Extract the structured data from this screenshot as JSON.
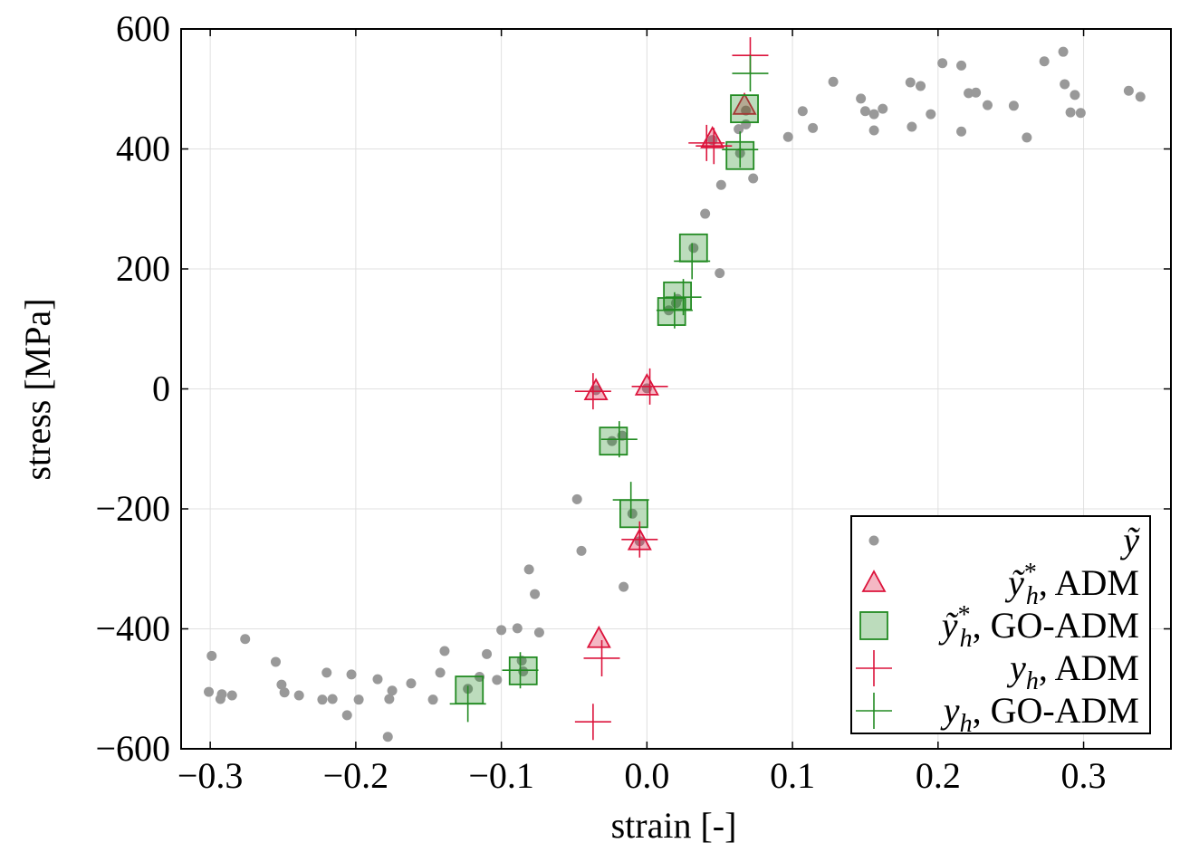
{
  "chart_data": {
    "type": "scatter",
    "xlabel": "strain [-]",
    "ylabel": "stress [MPa]",
    "xlim": [
      -0.32,
      0.36
    ],
    "ylim": [
      -600,
      600
    ],
    "xticks": [
      -0.3,
      -0.2,
      -0.1,
      0.0,
      0.1,
      0.2,
      0.3
    ],
    "xtick_labels": [
      "−0.3",
      "−0.2",
      "−0.1",
      "0.0",
      "0.1",
      "0.2",
      "0.3"
    ],
    "yticks": [
      -600,
      -400,
      -200,
      0,
      200,
      400,
      600
    ],
    "ytick_labels": [
      "−600",
      "−400",
      "−200",
      "0",
      "200",
      "400",
      "600"
    ],
    "grid": true,
    "legend_position": "bottom-right",
    "colors": {
      "data": "#999999",
      "adm": "#dc143c",
      "go_adm": "#228b22"
    },
    "series": [
      {
        "name": "ỹ",
        "legend": {
          "base": "ỹ",
          "sup": "",
          "sub": "",
          "text": ""
        },
        "marker": "circle",
        "color": "#999999",
        "points": [
          [
            -0.299,
            -445
          ],
          [
            -0.301,
            -505
          ],
          [
            -0.293,
            -517
          ],
          [
            -0.292,
            -509
          ],
          [
            -0.285,
            -511
          ],
          [
            -0.276,
            -417
          ],
          [
            -0.255,
            -455
          ],
          [
            -0.251,
            -493
          ],
          [
            -0.249,
            -506
          ],
          [
            -0.239,
            -511
          ],
          [
            -0.223,
            -518
          ],
          [
            -0.22,
            -473
          ],
          [
            -0.216,
            -517
          ],
          [
            -0.206,
            -544
          ],
          [
            -0.203,
            -476
          ],
          [
            -0.198,
            -518
          ],
          [
            -0.185,
            -484
          ],
          [
            -0.178,
            -580
          ],
          [
            -0.177,
            -517
          ],
          [
            -0.175,
            -503
          ],
          [
            -0.162,
            -491
          ],
          [
            -0.147,
            -518
          ],
          [
            -0.142,
            -473
          ],
          [
            -0.139,
            -437
          ],
          [
            -0.123,
            -500
          ],
          [
            -0.115,
            -480
          ],
          [
            -0.11,
            -442
          ],
          [
            -0.103,
            -485
          ],
          [
            -0.1,
            -402
          ],
          [
            -0.089,
            -399
          ],
          [
            -0.086,
            -453
          ],
          [
            -0.085,
            -471
          ],
          [
            -0.081,
            -301
          ],
          [
            -0.077,
            -342
          ],
          [
            -0.074,
            -406
          ],
          [
            -0.048,
            -184
          ],
          [
            -0.045,
            -270
          ],
          [
            -0.035,
            -2
          ],
          [
            -0.024,
            -87
          ],
          [
            -0.017,
            -78
          ],
          [
            -0.016,
            -330
          ],
          [
            -0.01,
            -208
          ],
          [
            -0.005,
            -254
          ],
          [
            0.0,
            1
          ],
          [
            0.015,
            131
          ],
          [
            0.02,
            143
          ],
          [
            0.021,
            150
          ],
          [
            0.032,
            235
          ],
          [
            0.04,
            292
          ],
          [
            0.045,
            415
          ],
          [
            0.05,
            193
          ],
          [
            0.051,
            340
          ],
          [
            0.063,
            433
          ],
          [
            0.064,
            393
          ],
          [
            0.068,
            441
          ],
          [
            0.068,
            464
          ],
          [
            0.073,
            351
          ],
          [
            0.097,
            420
          ],
          [
            0.107,
            463
          ],
          [
            0.114,
            435
          ],
          [
            0.128,
            512
          ],
          [
            0.147,
            484
          ],
          [
            0.15,
            463
          ],
          [
            0.156,
            458
          ],
          [
            0.156,
            431
          ],
          [
            0.162,
            467
          ],
          [
            0.181,
            511
          ],
          [
            0.182,
            437
          ],
          [
            0.188,
            505
          ],
          [
            0.195,
            458
          ],
          [
            0.203,
            543
          ],
          [
            0.216,
            539
          ],
          [
            0.216,
            429
          ],
          [
            0.221,
            493
          ],
          [
            0.226,
            494
          ],
          [
            0.234,
            473
          ],
          [
            0.252,
            472
          ],
          [
            0.261,
            419
          ],
          [
            0.273,
            546
          ],
          [
            0.286,
            562
          ],
          [
            0.287,
            508
          ],
          [
            0.291,
            461
          ],
          [
            0.294,
            490
          ],
          [
            0.298,
            460
          ],
          [
            0.331,
            497
          ],
          [
            0.339,
            487
          ]
        ]
      },
      {
        "name": "ỹ*h, ADM",
        "legend": {
          "base": "ỹ",
          "sup": "*",
          "sub": "h",
          "text": ", ADM"
        },
        "marker": "triangle",
        "color": "#dc143c",
        "points": [
          [
            -0.035,
            -4
          ],
          [
            0.0,
            4
          ],
          [
            -0.005,
            -254
          ],
          [
            -0.033,
            -417
          ],
          [
            0.045,
            416
          ],
          [
            0.067,
            472
          ]
        ]
      },
      {
        "name": "ỹ*h, GO-ADM",
        "legend": {
          "base": "ỹ",
          "sup": "*",
          "sub": "h",
          "text": ", GO-ADM"
        },
        "marker": "square",
        "color": "#228b22",
        "points": [
          [
            -0.122,
            -502
          ],
          [
            -0.085,
            -470
          ],
          [
            -0.023,
            -87
          ],
          [
            -0.009,
            -208
          ],
          [
            0.017,
            129
          ],
          [
            0.021,
            155
          ],
          [
            0.032,
            235
          ],
          [
            0.064,
            389
          ],
          [
            0.067,
            467
          ]
        ]
      },
      {
        "name": "yh, ADM",
        "legend": {
          "base": "y",
          "sup": "",
          "sub": "h",
          "text": ", ADM"
        },
        "marker": "plus",
        "color": "#dc143c",
        "points": [
          [
            -0.037,
            -4
          ],
          [
            0.002,
            4
          ],
          [
            -0.005,
            -251
          ],
          [
            -0.031,
            -449
          ],
          [
            -0.037,
            -555
          ],
          [
            0.041,
            410
          ],
          [
            0.046,
            405
          ],
          [
            0.071,
            556
          ]
        ]
      },
      {
        "name": "yh, GO-ADM",
        "legend": {
          "base": "y",
          "sup": "",
          "sub": "h",
          "text": ", GO-ADM"
        },
        "marker": "plus",
        "color": "#228b22",
        "points": [
          [
            -0.123,
            -525
          ],
          [
            -0.087,
            -469
          ],
          [
            -0.019,
            -84
          ],
          [
            -0.011,
            -185
          ],
          [
            0.019,
            131
          ],
          [
            0.025,
            153
          ],
          [
            0.031,
            213
          ],
          [
            0.064,
            399
          ],
          [
            0.071,
            526
          ]
        ]
      }
    ]
  }
}
